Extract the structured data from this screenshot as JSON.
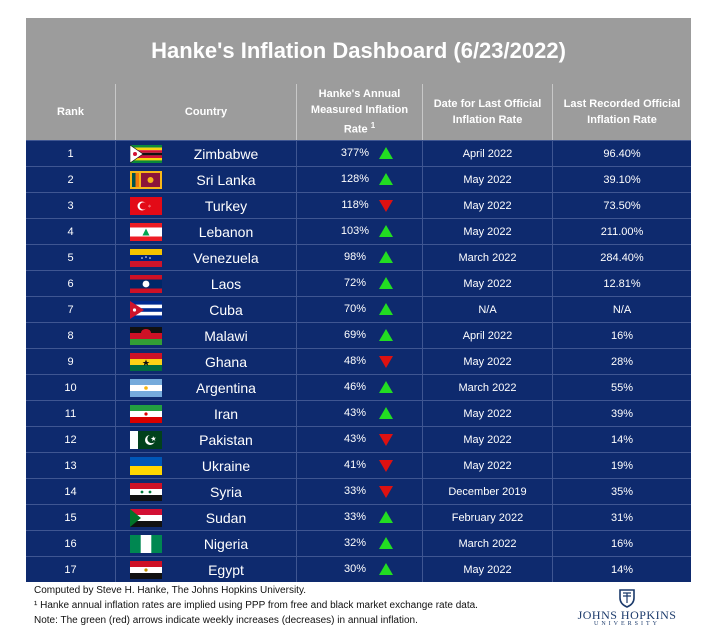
{
  "title": "Hanke's Inflation Dashboard (6/23/2022)",
  "headers": {
    "rank": "Rank",
    "country": "Country",
    "rate_line1": "Hanke's Annual",
    "rate_line2": "Measured Inflation",
    "rate_line3": "Rate",
    "rate_sup": "1",
    "date_line1": "Date for Last Official",
    "date_line2": "Inflation Rate",
    "official_line1": "Last Recorded Official",
    "official_line2": "Inflation Rate"
  },
  "colors": {
    "up_arrow": "#22dd22",
    "down_arrow": "#dd1111",
    "row_bg": "#0e2a6e",
    "header_bg": "#9c9c9c"
  },
  "rows": [
    {
      "rank": "1",
      "country": "Zimbabwe",
      "flag": "zimbabwe-flag-icon",
      "rate": "377%",
      "direction": "up",
      "date": "April 2022",
      "official": "96.40%"
    },
    {
      "rank": "2",
      "country": "Sri Lanka",
      "flag": "sri-lanka-flag-icon",
      "rate": "128%",
      "direction": "up",
      "date": "May 2022",
      "official": "39.10%"
    },
    {
      "rank": "3",
      "country": "Turkey",
      "flag": "turkey-flag-icon",
      "rate": "118%",
      "direction": "down",
      "date": "May 2022",
      "official": "73.50%"
    },
    {
      "rank": "4",
      "country": "Lebanon",
      "flag": "lebanon-flag-icon",
      "rate": "103%",
      "direction": "up",
      "date": "May 2022",
      "official": "211.00%"
    },
    {
      "rank": "5",
      "country": "Venezuela",
      "flag": "venezuela-flag-icon",
      "rate": "98%",
      "direction": "up",
      "date": "March 2022",
      "official": "284.40%"
    },
    {
      "rank": "6",
      "country": "Laos",
      "flag": "laos-flag-icon",
      "rate": "72%",
      "direction": "up",
      "date": "May 2022",
      "official": "12.81%"
    },
    {
      "rank": "7",
      "country": "Cuba",
      "flag": "cuba-flag-icon",
      "rate": "70%",
      "direction": "up",
      "date": "N/A",
      "official": "N/A"
    },
    {
      "rank": "8",
      "country": "Malawi",
      "flag": "malawi-flag-icon",
      "rate": "69%",
      "direction": "up",
      "date": "April 2022",
      "official": "16%"
    },
    {
      "rank": "9",
      "country": "Ghana",
      "flag": "ghana-flag-icon",
      "rate": "48%",
      "direction": "down",
      "date": "May 2022",
      "official": "28%"
    },
    {
      "rank": "10",
      "country": "Argentina",
      "flag": "argentina-flag-icon",
      "rate": "46%",
      "direction": "up",
      "date": "March 2022",
      "official": "55%"
    },
    {
      "rank": "11",
      "country": "Iran",
      "flag": "iran-flag-icon",
      "rate": "43%",
      "direction": "up",
      "date": "May 2022",
      "official": "39%"
    },
    {
      "rank": "12",
      "country": "Pakistan",
      "flag": "pakistan-flag-icon",
      "rate": "43%",
      "direction": "down",
      "date": "May 2022",
      "official": "14%"
    },
    {
      "rank": "13",
      "country": "Ukraine",
      "flag": "ukraine-flag-icon",
      "rate": "41%",
      "direction": "down",
      "date": "May 2022",
      "official": "19%"
    },
    {
      "rank": "14",
      "country": "Syria",
      "flag": "syria-flag-icon",
      "rate": "33%",
      "direction": "down",
      "date": "December 2019",
      "official": "35%"
    },
    {
      "rank": "15",
      "country": "Sudan",
      "flag": "sudan-flag-icon",
      "rate": "33%",
      "direction": "up",
      "date": "February 2022",
      "official": "31%"
    },
    {
      "rank": "16",
      "country": "Nigeria",
      "flag": "nigeria-flag-icon",
      "rate": "32%",
      "direction": "up",
      "date": "March 2022",
      "official": "16%"
    },
    {
      "rank": "17",
      "country": "Egypt",
      "flag": "egypt-flag-icon",
      "rate": "30%",
      "direction": "up",
      "date": "May 2022",
      "official": "14%"
    }
  ],
  "footer": {
    "line1": "Computed by Steve H. Hanke, The Johns Hopkins University.",
    "line2": "¹ Hanke annual inflation rates are implied using PPP from free and black market exchange rate data.",
    "line3": "Note: The green (red) arrows indicate weekly increases (decreases) in annual inflation."
  },
  "logo": {
    "name": "JOHNS HOPKINS",
    "sub": "UNIVERSITY"
  }
}
